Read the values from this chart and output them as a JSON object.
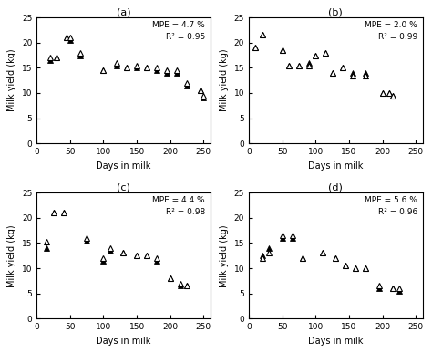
{
  "subplots": [
    {
      "label": "(a)",
      "mpe": "MPE = 4.7 %",
      "r2": "R² = 0.95",
      "actual_x": [
        20,
        30,
        45,
        50,
        65,
        100,
        120,
        135,
        150,
        165,
        180,
        195,
        210,
        225,
        245,
        250
      ],
      "actual_y": [
        17,
        17,
        21,
        21,
        18,
        14.5,
        16,
        15,
        15.5,
        15,
        15,
        14.5,
        14.5,
        12,
        10.5,
        9.5
      ],
      "predicted_x": [
        20,
        30,
        45,
        50,
        65,
        100,
        120,
        135,
        150,
        165,
        180,
        195,
        210,
        225,
        245,
        250
      ],
      "predicted_y": [
        16.5,
        17,
        21,
        20.5,
        17.5,
        14.5,
        15.5,
        15,
        15,
        15,
        14.5,
        14,
        14,
        11.5,
        10.5,
        9.0
      ]
    },
    {
      "label": "(b)",
      "mpe": "MPE = 2.0 %",
      "r2": "R² = 0.99",
      "actual_x": [
        10,
        20,
        50,
        60,
        75,
        90,
        100,
        115,
        125,
        140,
        155,
        175,
        200,
        210,
        215
      ],
      "actual_y": [
        19,
        21.5,
        18.5,
        15.5,
        15.5,
        15.5,
        17.5,
        18,
        14,
        15,
        13.5,
        13.5,
        10,
        10,
        9.5
      ],
      "predicted_x": [
        10,
        20,
        50,
        60,
        75,
        90,
        100,
        115,
        125,
        140,
        155,
        175,
        200,
        210,
        215
      ],
      "predicted_y": [
        19,
        21.5,
        18.5,
        15.5,
        15.5,
        16,
        17.5,
        18,
        14,
        15,
        14,
        14,
        10,
        10,
        9.5
      ]
    },
    {
      "label": "(c)",
      "mpe": "MPE = 4.4 %",
      "r2": "R² = 0.98",
      "actual_x": [
        15,
        25,
        40,
        75,
        100,
        110,
        130,
        150,
        165,
        180,
        200,
        215,
        225
      ],
      "actual_y": [
        15.3,
        21,
        21,
        16,
        12,
        14,
        13,
        12.5,
        12.5,
        12,
        8,
        7,
        6.5
      ],
      "predicted_x": [
        15,
        25,
        40,
        75,
        100,
        110,
        130,
        150,
        165,
        180,
        200,
        215,
        225
      ],
      "predicted_y": [
        14,
        21,
        21,
        15.5,
        11.5,
        13.5,
        13,
        12.5,
        12.5,
        11.5,
        8,
        6.5,
        6.5
      ]
    },
    {
      "label": "(d)",
      "mpe": "MPE = 5.6 %",
      "r2": "R² = 0.96",
      "actual_x": [
        20,
        30,
        50,
        65,
        80,
        110,
        130,
        145,
        160,
        175,
        195,
        215,
        225
      ],
      "actual_y": [
        12,
        13,
        16.5,
        16.5,
        12,
        13,
        12,
        10.5,
        10,
        10,
        6.5,
        6,
        6
      ],
      "predicted_x": [
        20,
        30,
        50,
        65,
        80,
        110,
        130,
        145,
        160,
        175,
        195,
        215,
        225
      ],
      "predicted_y": [
        12.5,
        14,
        16,
        16,
        12,
        13,
        12,
        10.5,
        10,
        10,
        6,
        6,
        5.5
      ]
    }
  ],
  "xlabel": "Days in milk",
  "ylabel": "Milk yield (kg)",
  "xlim": [
    0,
    260
  ],
  "ylim": [
    0,
    25
  ],
  "xticks": [
    0,
    50,
    100,
    150,
    200,
    250
  ],
  "yticks": [
    0,
    5,
    10,
    15,
    20,
    25
  ],
  "markersize": 5,
  "bg_color": "white",
  "fig_bg": "white"
}
